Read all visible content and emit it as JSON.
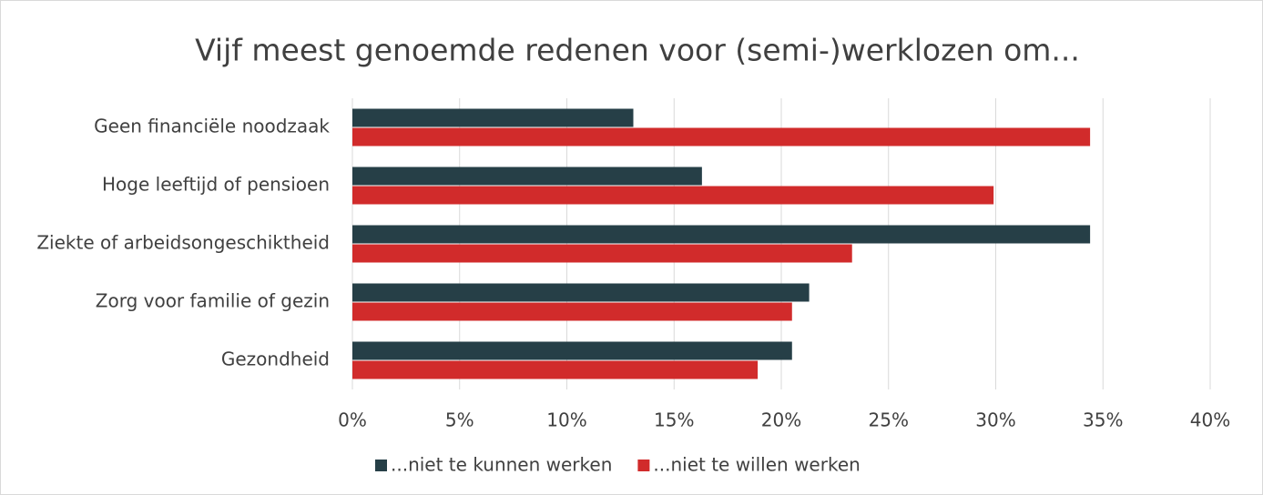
{
  "chart_data": {
    "type": "hbar",
    "title": "Vijf meest genoemde redenen voor (semi-)werklozen om...",
    "categories": [
      "Geen financiële noodzaak",
      "Hoge leeftijd of pensioen",
      "Ziekte of arbeidsongeschiktheid",
      "Zorg voor familie of gezin",
      "Gezondheid"
    ],
    "series": [
      {
        "name": "...niet te kunnen werken",
        "color": "#263f47",
        "values": [
          13.1,
          16.3,
          34.4,
          21.3,
          20.5
        ]
      },
      {
        "name": "...niet te willen werken",
        "color": "#d12b2b",
        "values": [
          34.4,
          29.9,
          23.3,
          20.5,
          18.9
        ]
      }
    ],
    "xlim": [
      0,
      40
    ],
    "xticks": [
      {
        "value": 0,
        "label": "0%"
      },
      {
        "value": 5,
        "label": "5%"
      },
      {
        "value": 10,
        "label": "10%"
      },
      {
        "value": 15,
        "label": "15%"
      },
      {
        "value": 20,
        "label": "20%"
      },
      {
        "value": 25,
        "label": "25%"
      },
      {
        "value": 30,
        "label": "30%"
      },
      {
        "value": 35,
        "label": "35%"
      },
      {
        "value": 40,
        "label": "40%"
      }
    ],
    "grid": true,
    "legend": "bottom"
  }
}
